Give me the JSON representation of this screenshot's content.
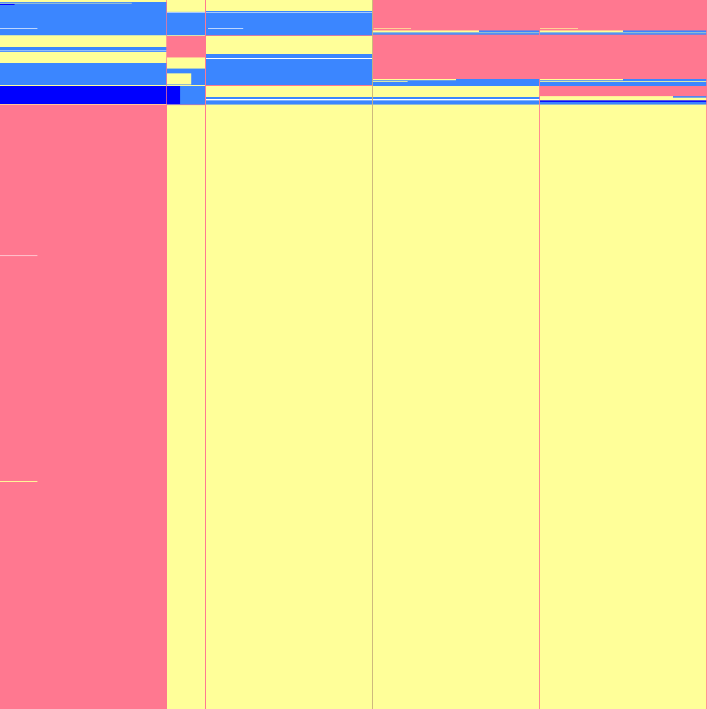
{
  "palette": {
    "pink": "#ff7890",
    "yellow": "#ffff99",
    "blue": "#3b86ff",
    "dark_blue": "#0000ff"
  },
  "columns": [
    "sidebar",
    "narrow-column",
    "column-1",
    "column-2",
    "column-3"
  ]
}
